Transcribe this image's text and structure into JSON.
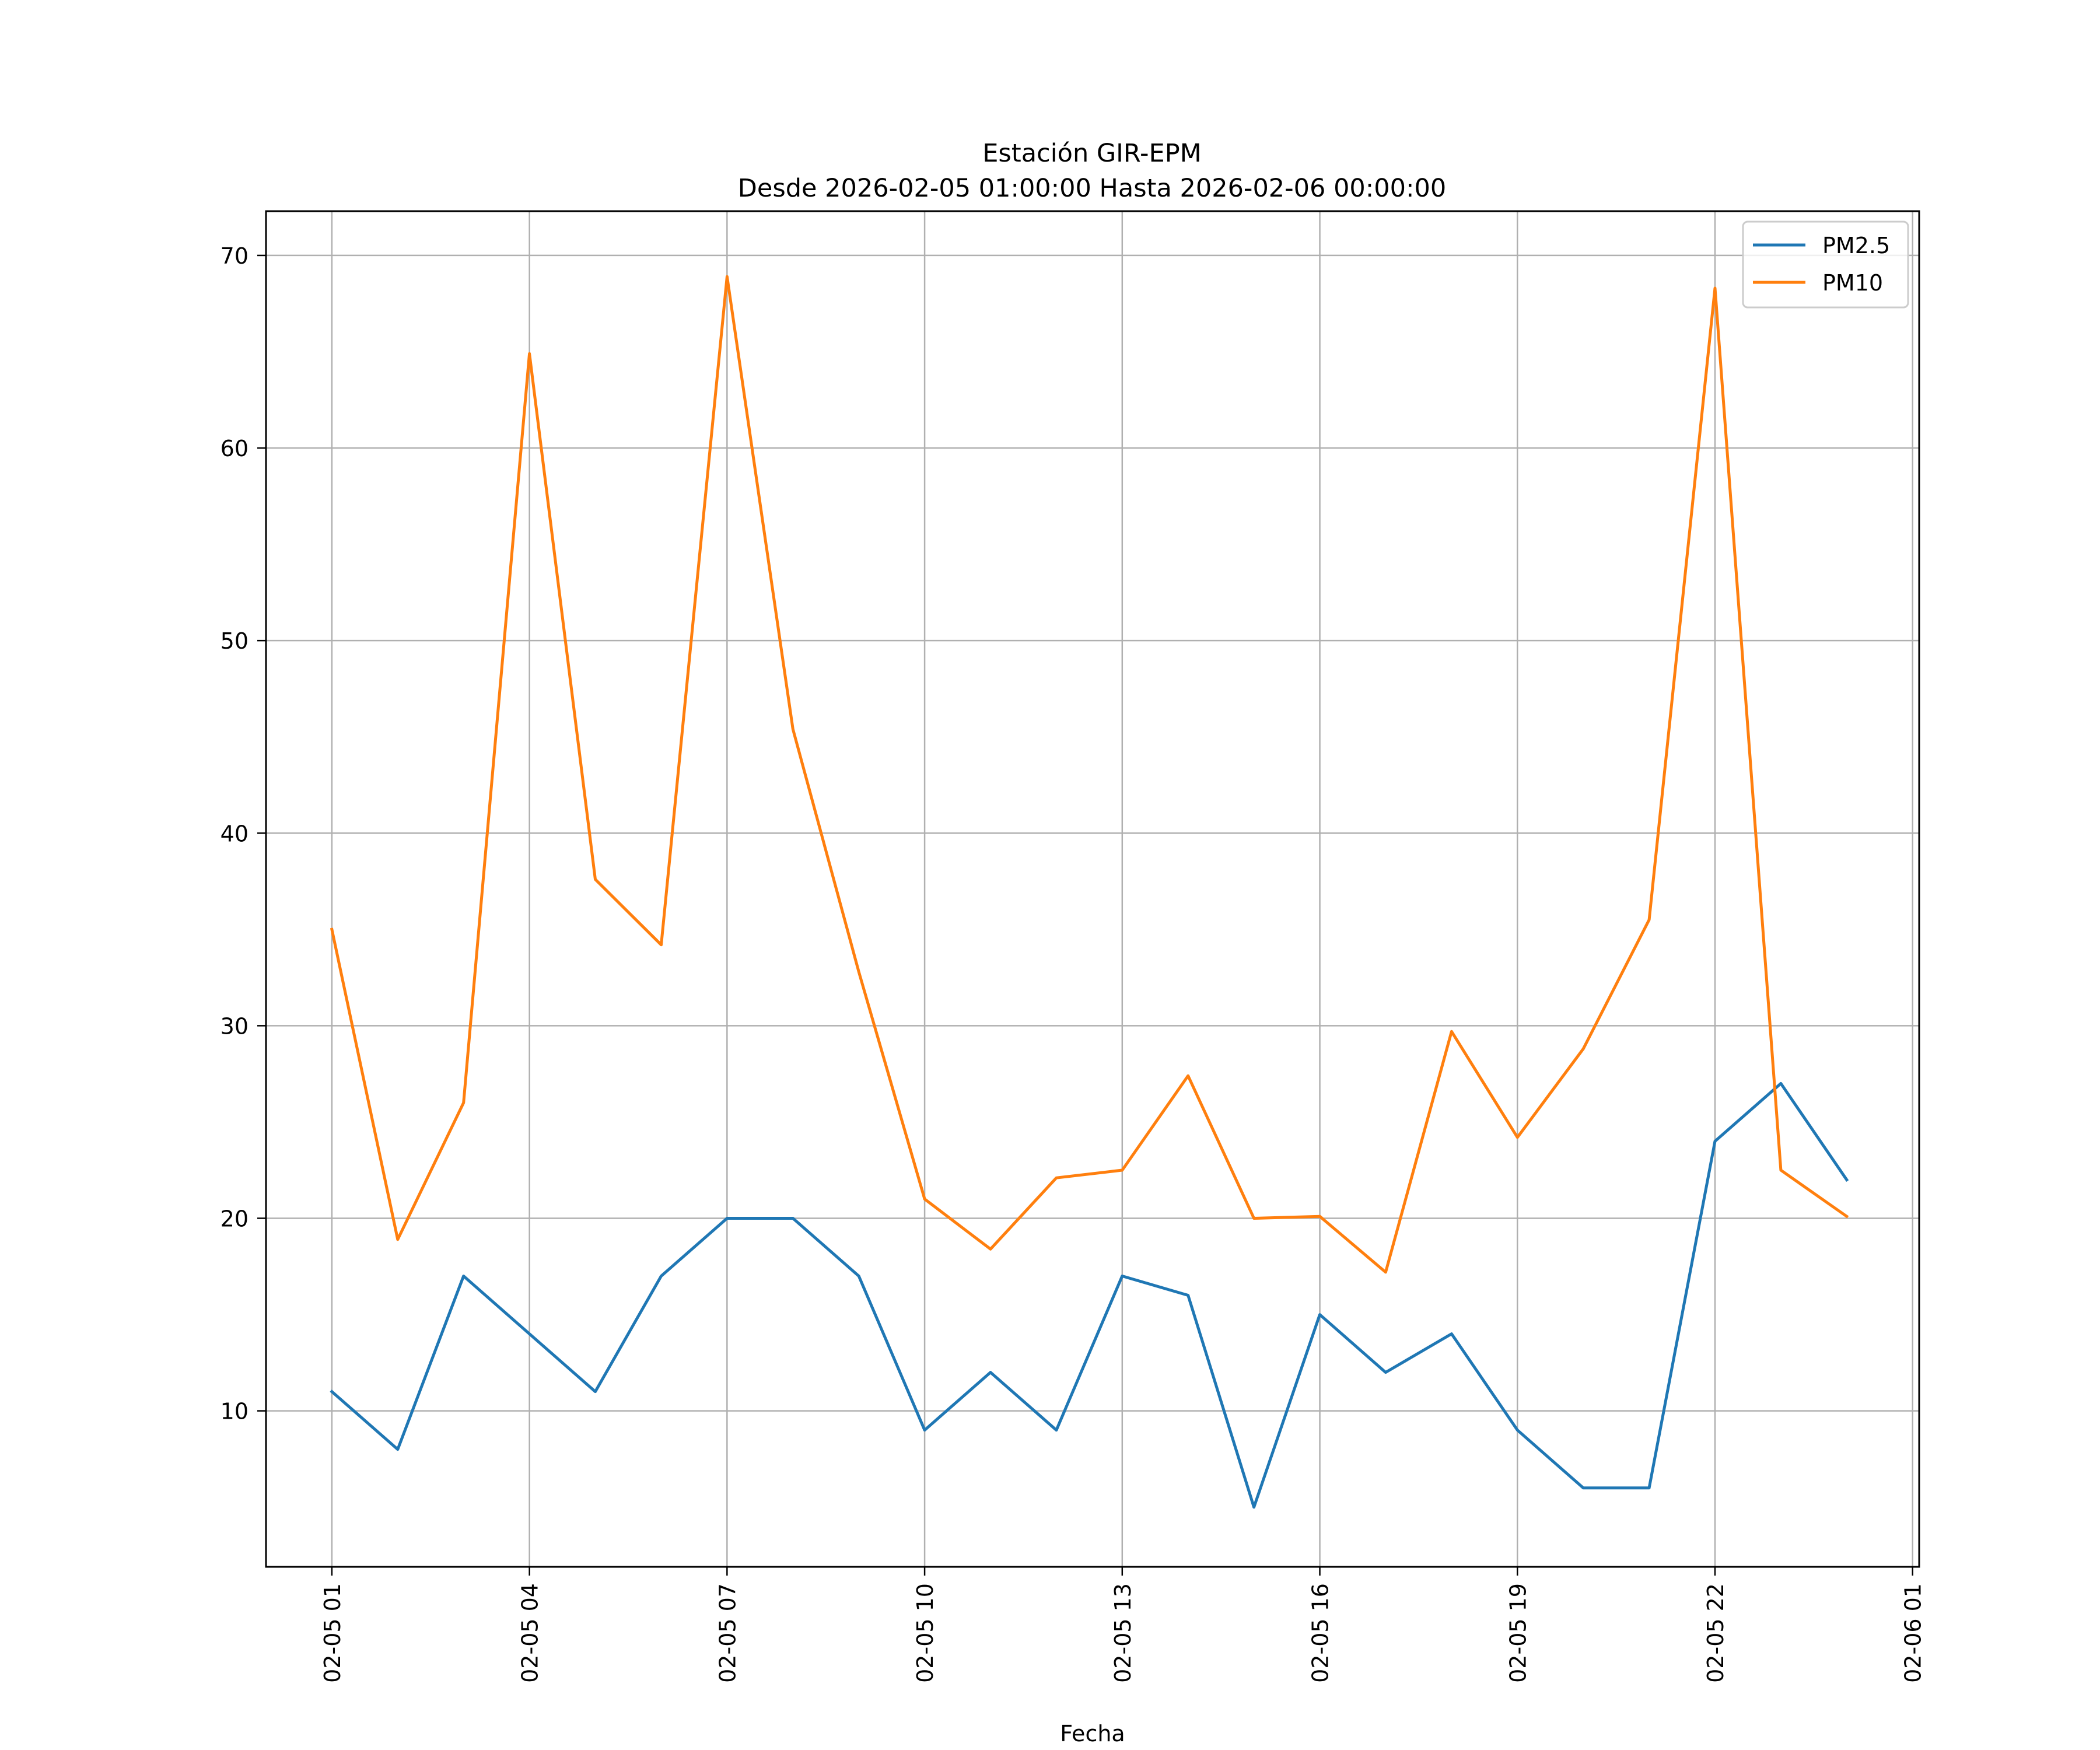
{
  "chart_data": {
    "type": "line",
    "title_line1": "Estación GIR-EPM",
    "title_line2": "Desde 2026-02-05 01:00:00 Hasta 2026-02-06 00:00:00",
    "xlabel": "Fecha",
    "ylabel": "",
    "x_hours": [
      1,
      2,
      3,
      4,
      5,
      6,
      7,
      8,
      9,
      10,
      11,
      12,
      13,
      14,
      15,
      16,
      17,
      18,
      19,
      20,
      21,
      22,
      23,
      24
    ],
    "xlim": [
      0,
      25.1
    ],
    "ylim": [
      1.9,
      72.3
    ],
    "x_ticks": [
      {
        "hour": 1,
        "label": "02-05 01"
      },
      {
        "hour": 4,
        "label": "02-05 04"
      },
      {
        "hour": 7,
        "label": "02-05 07"
      },
      {
        "hour": 10,
        "label": "02-05 10"
      },
      {
        "hour": 13,
        "label": "02-05 13"
      },
      {
        "hour": 16,
        "label": "02-05 16"
      },
      {
        "hour": 19,
        "label": "02-05 19"
      },
      {
        "hour": 22,
        "label": "02-05 22"
      },
      {
        "hour": 25,
        "label": "02-06 01"
      }
    ],
    "y_ticks": [
      {
        "value": 10,
        "label": "10"
      },
      {
        "value": 20,
        "label": "20"
      },
      {
        "value": 30,
        "label": "30"
      },
      {
        "value": 40,
        "label": "40"
      },
      {
        "value": 50,
        "label": "50"
      },
      {
        "value": 60,
        "label": "60"
      },
      {
        "value": 70,
        "label": "70"
      }
    ],
    "grid": true,
    "legend_position": "top-right",
    "series": [
      {
        "name": "PM2.5",
        "color": "#1f77b4",
        "values": [
          11,
          8,
          17,
          14,
          11,
          17,
          20,
          20,
          17,
          9,
          12,
          9,
          17,
          16,
          5,
          15,
          12,
          14,
          9,
          6,
          6,
          24,
          27,
          22
        ]
      },
      {
        "name": "PM10",
        "color": "#ff7f0e",
        "values": [
          35,
          18.9,
          26,
          64.9,
          37.6,
          34.2,
          68.9,
          45.4,
          32.8,
          21,
          18.4,
          22.1,
          22.5,
          27.4,
          20,
          20.1,
          17.2,
          29.7,
          24.2,
          28.8,
          35.5,
          68.3,
          22.5,
          20.1
        ]
      }
    ]
  }
}
